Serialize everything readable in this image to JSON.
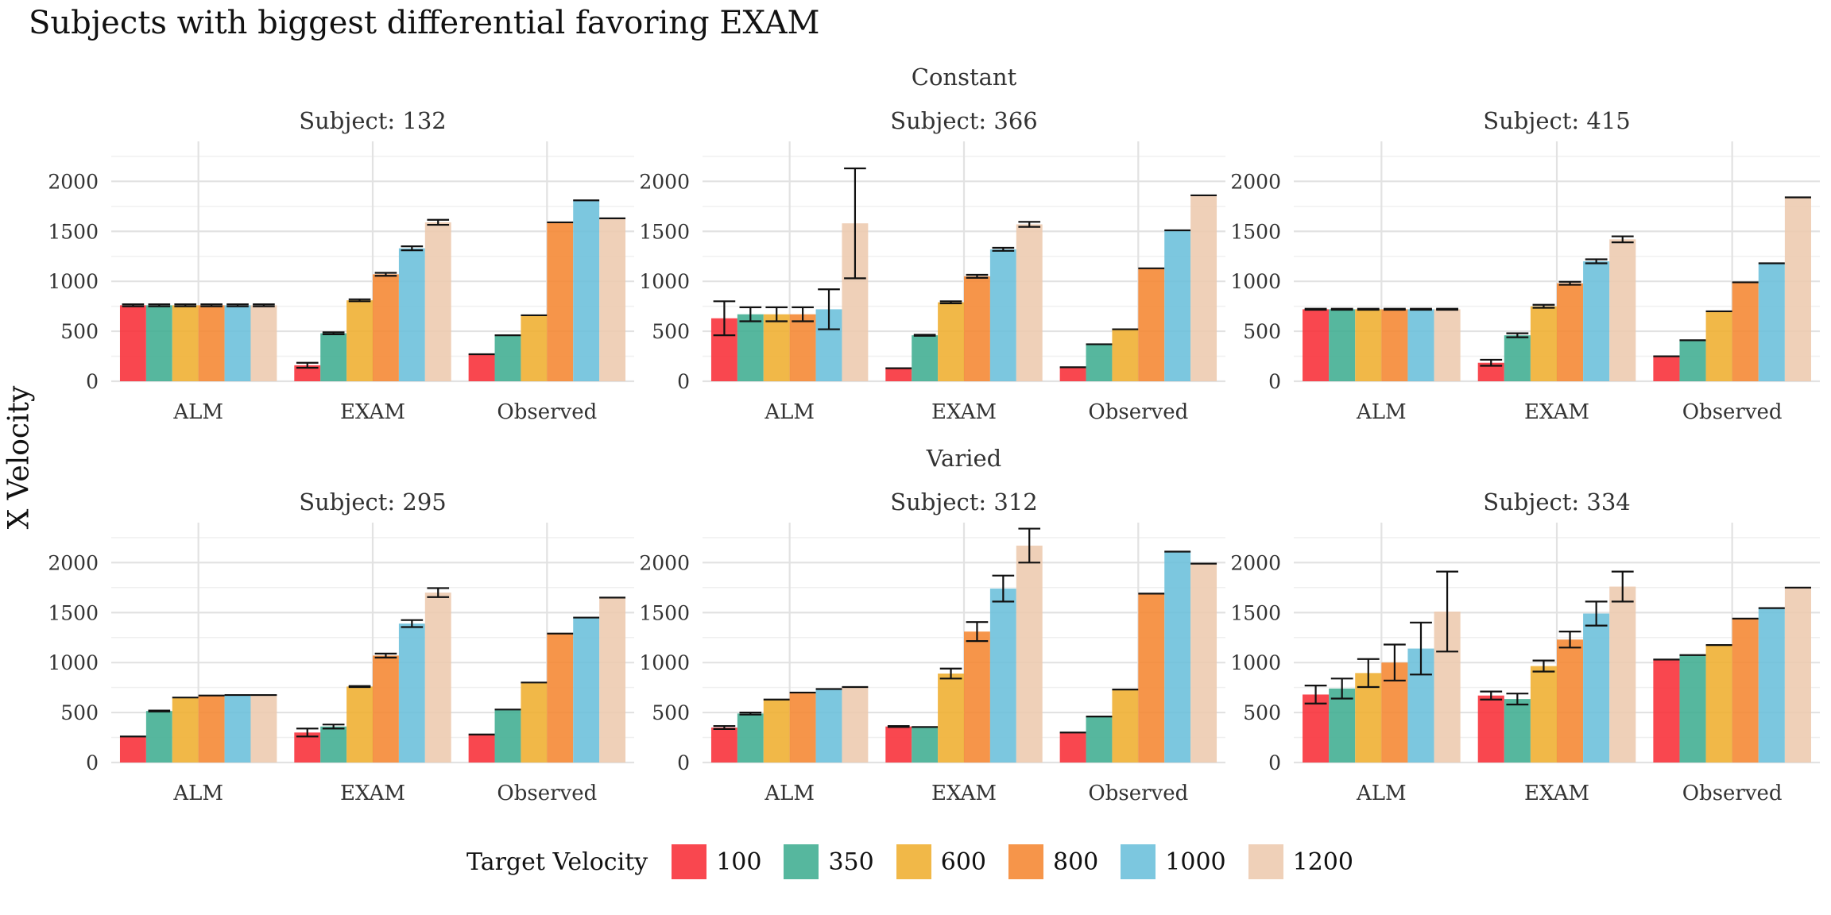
{
  "title": "Subjects with biggest differential favoring EXAM",
  "ylabel": "X Velocity",
  "legend": {
    "title": "Target Velocity",
    "items": [
      {
        "label": "100",
        "color": "#F8333C"
      },
      {
        "label": "350",
        "color": "#44AF93"
      },
      {
        "label": "600",
        "color": "#F0B034"
      },
      {
        "label": "800",
        "color": "#F58A36"
      },
      {
        "label": "1000",
        "color": "#6EC1DC"
      },
      {
        "label": "1200",
        "color": "#EDCBB0"
      }
    ]
  },
  "chart_data": [
    {
      "type": "bar",
      "group": "Constant",
      "subtitle": "Subject: 132",
      "categories": [
        "ALM",
        "EXAM",
        "Observed"
      ],
      "ylim": [
        0,
        2400
      ],
      "yticks": [
        0,
        500,
        1000,
        1500,
        2000
      ],
      "series": [
        {
          "name": "100",
          "values": [
            760,
            160,
            270
          ],
          "errors": [
            10,
            25,
            0
          ]
        },
        {
          "name": "350",
          "values": [
            760,
            480,
            460
          ],
          "errors": [
            10,
            10,
            0
          ]
        },
        {
          "name": "600",
          "values": [
            760,
            810,
            660
          ],
          "errors": [
            10,
            10,
            0
          ]
        },
        {
          "name": "800",
          "values": [
            760,
            1070,
            1590
          ],
          "errors": [
            10,
            15,
            0
          ]
        },
        {
          "name": "1000",
          "values": [
            760,
            1330,
            1810
          ],
          "errors": [
            10,
            20,
            0
          ]
        },
        {
          "name": "1200",
          "values": [
            760,
            1590,
            1630
          ],
          "errors": [
            10,
            25,
            0
          ]
        }
      ]
    },
    {
      "type": "bar",
      "group": "Constant",
      "subtitle": "Subject: 366",
      "categories": [
        "ALM",
        "EXAM",
        "Observed"
      ],
      "ylim": [
        0,
        2400
      ],
      "yticks": [
        0,
        500,
        1000,
        1500,
        2000
      ],
      "series": [
        {
          "name": "100",
          "values": [
            630,
            130,
            140
          ],
          "errors": [
            170,
            0,
            0
          ]
        },
        {
          "name": "350",
          "values": [
            670,
            460,
            370
          ],
          "errors": [
            70,
            5,
            0
          ]
        },
        {
          "name": "600",
          "values": [
            670,
            790,
            520
          ],
          "errors": [
            70,
            10,
            0
          ]
        },
        {
          "name": "800",
          "values": [
            670,
            1050,
            1130
          ],
          "errors": [
            70,
            15,
            0
          ]
        },
        {
          "name": "1000",
          "values": [
            720,
            1320,
            1510
          ],
          "errors": [
            200,
            15,
            0
          ]
        },
        {
          "name": "1200",
          "values": [
            1580,
            1570,
            1860
          ],
          "errors": [
            550,
            25,
            0
          ]
        }
      ]
    },
    {
      "type": "bar",
      "group": "Constant",
      "subtitle": "Subject: 415",
      "categories": [
        "ALM",
        "EXAM",
        "Observed"
      ],
      "ylim": [
        0,
        2400
      ],
      "yticks": [
        0,
        500,
        1000,
        1500,
        2000
      ],
      "series": [
        {
          "name": "100",
          "values": [
            720,
            185,
            250
          ],
          "errors": [
            5,
            30,
            0
          ]
        },
        {
          "name": "350",
          "values": [
            720,
            460,
            410
          ],
          "errors": [
            5,
            20,
            0
          ]
        },
        {
          "name": "600",
          "values": [
            720,
            750,
            700
          ],
          "errors": [
            5,
            15,
            0
          ]
        },
        {
          "name": "800",
          "values": [
            720,
            980,
            990
          ],
          "errors": [
            5,
            15,
            0
          ]
        },
        {
          "name": "1000",
          "values": [
            720,
            1200,
            1180
          ],
          "errors": [
            5,
            20,
            0
          ]
        },
        {
          "name": "1200",
          "values": [
            720,
            1420,
            1840
          ],
          "errors": [
            5,
            30,
            0
          ]
        }
      ]
    },
    {
      "type": "bar",
      "group": "Varied",
      "subtitle": "Subject: 295",
      "categories": [
        "ALM",
        "EXAM",
        "Observed"
      ],
      "ylim": [
        0,
        2400
      ],
      "yticks": [
        0,
        500,
        1000,
        1500,
        2000
      ],
      "series": [
        {
          "name": "100",
          "values": [
            260,
            300,
            280
          ],
          "errors": [
            0,
            40,
            0
          ]
        },
        {
          "name": "350",
          "values": [
            515,
            360,
            530
          ],
          "errors": [
            5,
            20,
            0
          ]
        },
        {
          "name": "600",
          "values": [
            650,
            760,
            800
          ],
          "errors": [
            0,
            5,
            0
          ]
        },
        {
          "name": "800",
          "values": [
            670,
            1070,
            1290
          ],
          "errors": [
            0,
            20,
            0
          ]
        },
        {
          "name": "1000",
          "values": [
            675,
            1390,
            1450
          ],
          "errors": [
            0,
            35,
            0
          ]
        },
        {
          "name": "1200",
          "values": [
            675,
            1700,
            1650
          ],
          "errors": [
            0,
            45,
            0
          ]
        }
      ]
    },
    {
      "type": "bar",
      "group": "Varied",
      "subtitle": "Subject: 312",
      "categories": [
        "ALM",
        "EXAM",
        "Observed"
      ],
      "ylim": [
        0,
        2400
      ],
      "yticks": [
        0,
        500,
        1000,
        1500,
        2000
      ],
      "series": [
        {
          "name": "100",
          "values": [
            350,
            360,
            300
          ],
          "errors": [
            15,
            5,
            0
          ]
        },
        {
          "name": "350",
          "values": [
            490,
            355,
            460
          ],
          "errors": [
            10,
            0,
            0
          ]
        },
        {
          "name": "600",
          "values": [
            630,
            890,
            730
          ],
          "errors": [
            0,
            50,
            0
          ]
        },
        {
          "name": "800",
          "values": [
            700,
            1310,
            1690
          ],
          "errors": [
            0,
            95,
            0
          ]
        },
        {
          "name": "1000",
          "values": [
            735,
            1740,
            2110
          ],
          "errors": [
            0,
            130,
            0
          ]
        },
        {
          "name": "1200",
          "values": [
            755,
            2170,
            1990
          ],
          "errors": [
            0,
            170,
            0
          ]
        }
      ]
    },
    {
      "type": "bar",
      "group": "Varied",
      "subtitle": "Subject: 334",
      "categories": [
        "ALM",
        "EXAM",
        "Observed"
      ],
      "ylim": [
        0,
        2400
      ],
      "yticks": [
        0,
        500,
        1000,
        1500,
        2000
      ],
      "series": [
        {
          "name": "100",
          "values": [
            680,
            670,
            1030
          ],
          "errors": [
            90,
            40,
            0
          ]
        },
        {
          "name": "350",
          "values": [
            740,
            635,
            1075
          ],
          "errors": [
            100,
            55,
            0
          ]
        },
        {
          "name": "600",
          "values": [
            895,
            965,
            1175
          ],
          "errors": [
            140,
            55,
            0
          ]
        },
        {
          "name": "800",
          "values": [
            1000,
            1230,
            1440
          ],
          "errors": [
            180,
            80,
            0
          ]
        },
        {
          "name": "1000",
          "values": [
            1140,
            1490,
            1545
          ],
          "errors": [
            260,
            120,
            0
          ]
        },
        {
          "name": "1200",
          "values": [
            1510,
            1760,
            1750
          ],
          "errors": [
            400,
            150,
            0
          ]
        }
      ]
    }
  ]
}
